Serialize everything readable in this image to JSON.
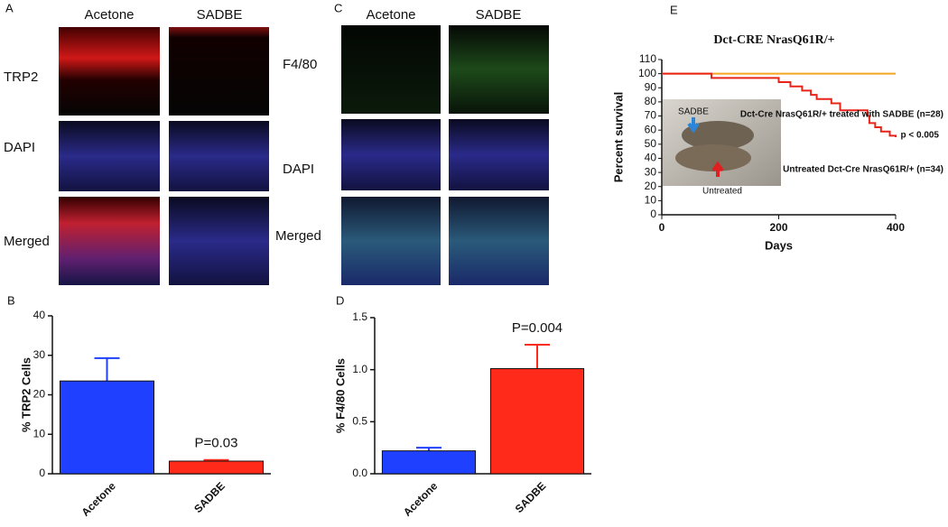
{
  "panels": {
    "A": {
      "letter": "A",
      "columns": [
        "Acetone",
        "SADBE"
      ],
      "rows": [
        "TRP2",
        "DAPI",
        "Merged"
      ]
    },
    "C": {
      "letter": "C",
      "columns": [
        "Acetone",
        "SADBE"
      ],
      "rows": [
        "F4/80",
        "DAPI",
        "Merged"
      ]
    },
    "B": {
      "letter": "B"
    },
    "D": {
      "letter": "D"
    },
    "E": {
      "letter": "E"
    },
    "inset": {
      "top_label": "SADBE",
      "bottom_label": "Untreated"
    }
  },
  "chart_data": [
    {
      "type": "bar",
      "ylabel": "% TRP2 Cells",
      "categories": [
        "Acetone",
        "SADBE"
      ],
      "values": [
        23.5,
        3.2
      ],
      "errors": [
        5.8,
        0.3
      ],
      "colors": [
        "#2040ff",
        "#ff2a1a"
      ],
      "ylim": [
        0,
        40
      ],
      "yticks": [
        0,
        10,
        20,
        30,
        40
      ],
      "annotation": "P=0.03"
    },
    {
      "type": "bar",
      "ylabel": "% F4/80 Cells",
      "categories": [
        "Acetone",
        "SADBE"
      ],
      "values": [
        0.22,
        1.01
      ],
      "errors": [
        0.03,
        0.23
      ],
      "colors": [
        "#2040ff",
        "#ff2a1a"
      ],
      "ylim": [
        0,
        1.5
      ],
      "yticks": [
        {
          "value": 0,
          "label": "0.0"
        },
        {
          "value": 0.5,
          "label": "0.5"
        },
        {
          "value": 1,
          "label": "1.0"
        },
        {
          "value": 1.5,
          "label": "1.5"
        }
      ],
      "annotation": "P=0.004"
    },
    {
      "type": "line",
      "title": "Dct-CRE NrasQ61R/+",
      "xlabel": "Days",
      "ylabel": "Percent survival",
      "xlim": [
        0,
        400
      ],
      "xticks": [
        0,
        200,
        400
      ],
      "ylim": [
        0,
        110
      ],
      "yticks": [
        0,
        10,
        20,
        30,
        40,
        50,
        60,
        70,
        80,
        90,
        100,
        110
      ],
      "series": [
        {
          "name": "Dct-Cre NrasQ61R/+ treated with SADBE (n=28)",
          "color": "#f5a623",
          "x": [
            0,
            400
          ],
          "values": [
            100,
            100
          ]
        },
        {
          "name": "Untreated Dct-Cre NrasQ61R/+ (n=34)",
          "color": "#e8241a",
          "x": [
            0,
            85,
            200,
            220,
            240,
            255,
            265,
            290,
            305,
            350,
            352,
            355,
            365,
            375,
            390,
            400
          ],
          "values": [
            100,
            97,
            94,
            91,
            88,
            85,
            82,
            79,
            74,
            74,
            70,
            65,
            62,
            59,
            56,
            55
          ]
        }
      ],
      "annotation": "p < 0.005"
    }
  ]
}
